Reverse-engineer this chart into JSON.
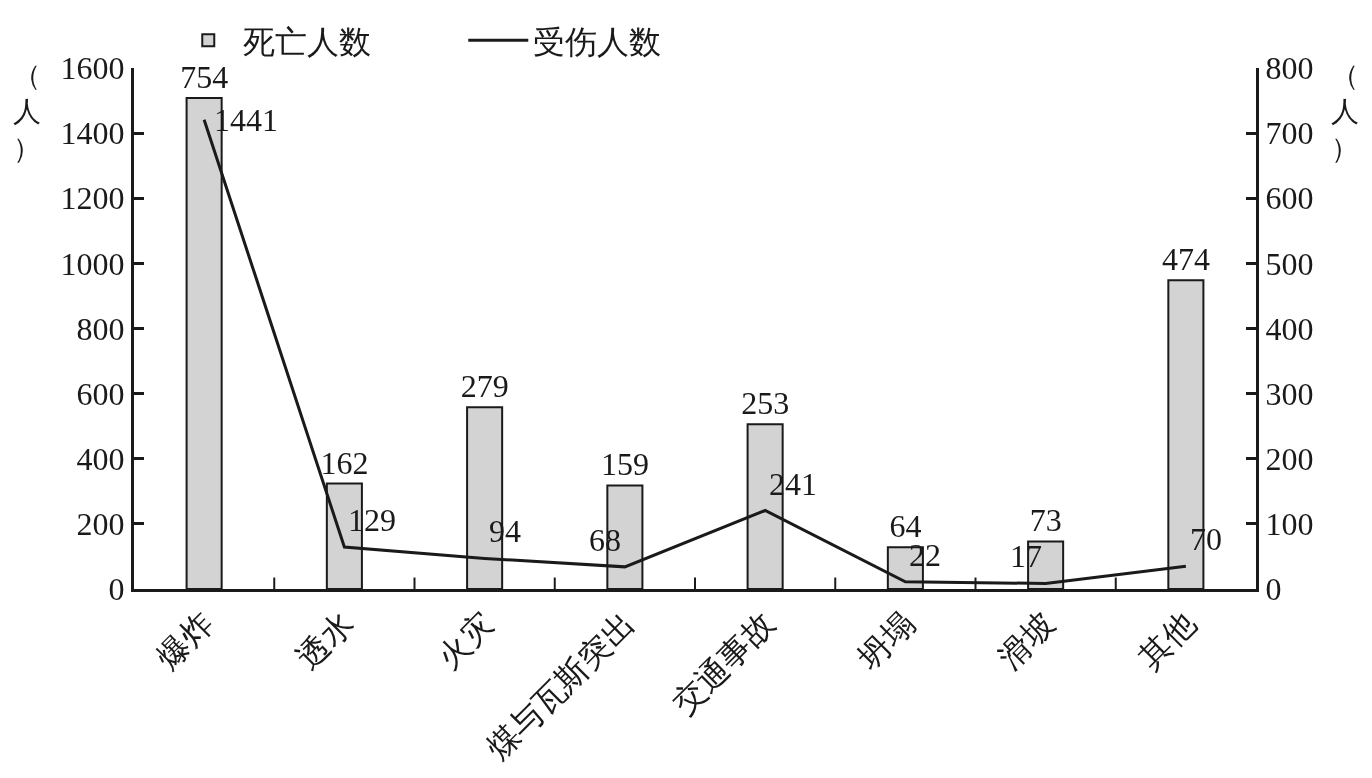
{
  "chart_data": {
    "type": "bar",
    "categories": [
      "爆炸",
      "透水",
      "火灾",
      "煤与瓦斯突出",
      "交通事故",
      "坍塌",
      "滑坡",
      "其他"
    ],
    "series": [
      {
        "name": "死亡人数",
        "axis": "y2",
        "color": "#d3d3d3",
        "values": [
          754,
          162,
          279,
          159,
          253,
          64,
          73,
          474
        ]
      },
      {
        "name": "受伤人数",
        "type": "line",
        "color": "#1a1a1a",
        "line_style": "solid",
        "values": [
          1441,
          129,
          94,
          68,
          241,
          22,
          17,
          70
        ]
      }
    ],
    "ylabel": "（人）",
    "y2label": "（人）",
    "ylim": [
      0,
      1600
    ],
    "yticks": [
      0,
      200,
      400,
      600,
      800,
      1000,
      1200,
      1400,
      1600
    ],
    "y2lim": [
      0,
      800
    ],
    "y2ticks": [
      0,
      100,
      200,
      300,
      400,
      500,
      600,
      700,
      800
    ],
    "data_labels": true,
    "legend": "top"
  }
}
